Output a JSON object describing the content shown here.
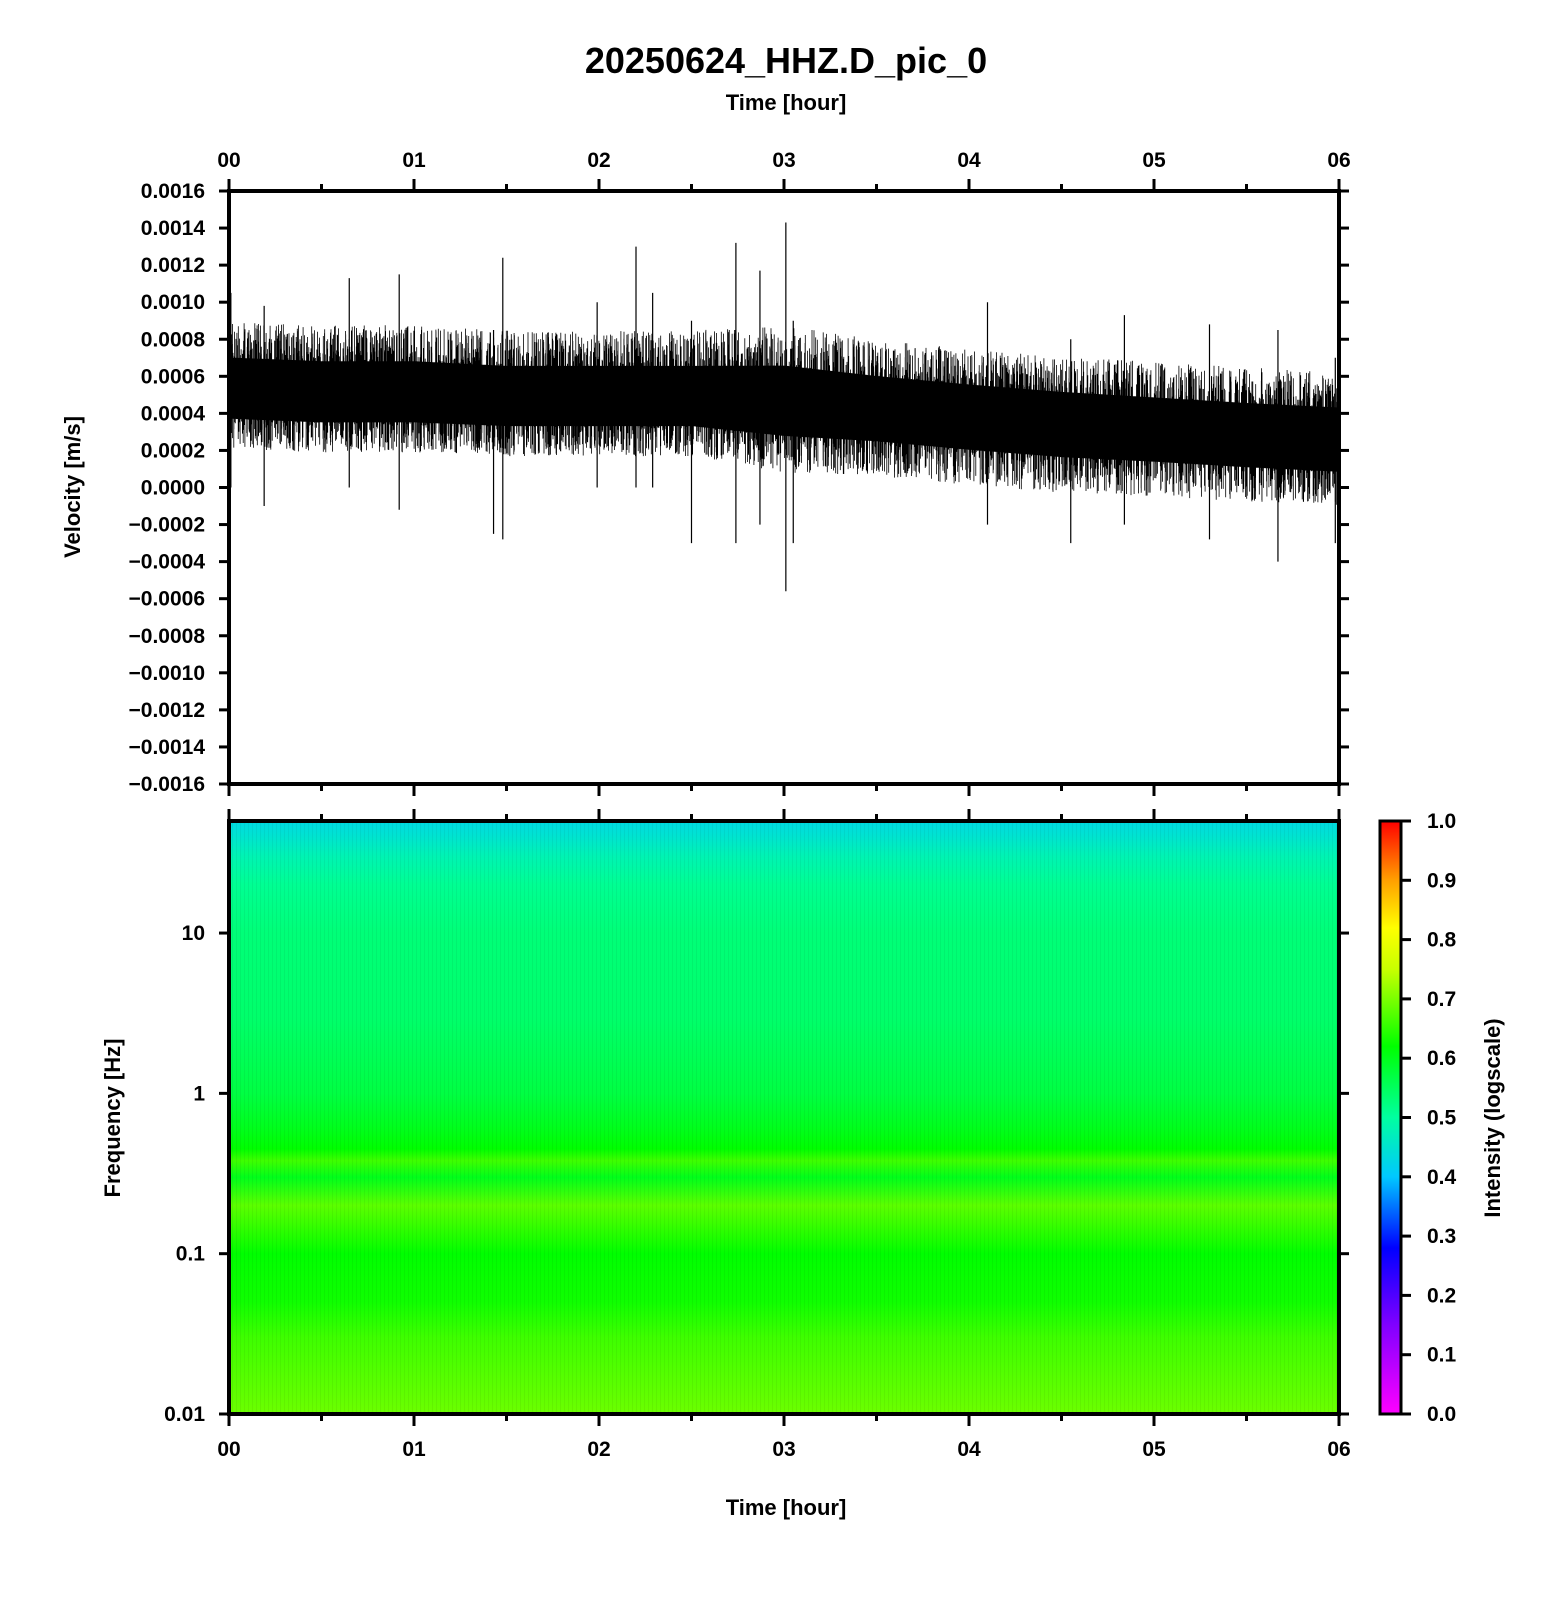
{
  "chart_data": [
    {
      "type": "line",
      "title": "20250624_HHZ.D_pic_0",
      "xlabel": "Time [hour]",
      "ylabel": "Velocity [m/s]",
      "xlim": [
        0,
        6
      ],
      "ylim": [
        -0.0016,
        0.0016
      ],
      "x_ticks": [
        "00",
        "01",
        "02",
        "03",
        "04",
        "05",
        "06"
      ],
      "y_ticks": [
        "0.0016",
        "0.0014",
        "0.0012",
        "0.0010",
        "0.0008",
        "0.0006",
        "0.0004",
        "0.0002",
        "0.0000",
        "−0.0002",
        "−0.0004",
        "−0.0006",
        "−0.0008",
        "−0.0010",
        "−0.0012",
        "−0.0014",
        "−0.0016"
      ],
      "series": [
        {
          "color": "#000000",
          "envelope": {
            "x": [
              0.0,
              0.5,
              1.0,
              1.5,
              2.0,
              2.5,
              3.0,
              3.5,
              4.0,
              4.5,
              5.0,
              5.5,
              6.0
            ],
            "mean": [
              0.00052,
              0.0005,
              0.0005,
              0.00048,
              0.00048,
              0.00048,
              0.00046,
              0.00042,
              0.00038,
              0.00034,
              0.00031,
              0.00028,
              0.00025
            ],
            "upper": [
              0.00085,
              0.00083,
              0.00083,
              0.0008,
              0.0008,
              0.0008,
              0.00082,
              0.00075,
              0.0007,
              0.00066,
              0.00063,
              0.0006,
              0.00058
            ],
            "lower": [
              0.00025,
              0.00023,
              0.00023,
              0.00021,
              0.00021,
              0.00021,
              0.00013,
              0.00011,
              6e-05,
              2e-05,
              0.0,
              -3e-05,
              -5e-05
            ]
          },
          "spikes": [
            {
              "x": 0.01,
              "min": 0.0,
              "max": 0.00105
            },
            {
              "x": 0.19,
              "min": -0.0001,
              "max": 0.00098
            },
            {
              "x": 0.65,
              "min": 0.0,
              "max": 0.00113
            },
            {
              "x": 0.92,
              "min": -0.00012,
              "max": 0.00115
            },
            {
              "x": 1.43,
              "min": -0.00025,
              "max": 0.00085
            },
            {
              "x": 1.48,
              "min": -0.00028,
              "max": 0.00124
            },
            {
              "x": 1.99,
              "min": 0.0,
              "max": 0.001
            },
            {
              "x": 2.2,
              "min": 0.0,
              "max": 0.0013
            },
            {
              "x": 2.29,
              "min": 0.0,
              "max": 0.00105
            },
            {
              "x": 2.5,
              "min": -0.0003,
              "max": 0.0009
            },
            {
              "x": 2.74,
              "min": -0.0003,
              "max": 0.00132
            },
            {
              "x": 2.87,
              "min": -0.0002,
              "max": 0.00117
            },
            {
              "x": 3.01,
              "min": -0.00056,
              "max": 0.00143
            },
            {
              "x": 3.05,
              "min": -0.0003,
              "max": 0.0009
            },
            {
              "x": 4.1,
              "min": -0.0002,
              "max": 0.001
            },
            {
              "x": 4.55,
              "min": -0.0003,
              "max": 0.0008
            },
            {
              "x": 4.84,
              "min": -0.0002,
              "max": 0.00093
            },
            {
              "x": 5.3,
              "min": -0.00028,
              "max": 0.00088
            },
            {
              "x": 5.67,
              "min": -0.0004,
              "max": 0.00085
            },
            {
              "x": 5.98,
              "min": -0.0003,
              "max": 0.0007
            }
          ]
        }
      ]
    },
    {
      "type": "heatmap",
      "xlabel": "Time [hour]",
      "ylabel": "Frequency [Hz]",
      "xlim": [
        0,
        6
      ],
      "ylim": [
        0.01,
        50
      ],
      "yscale": "log",
      "x_ticks": [
        "00",
        "01",
        "02",
        "03",
        "04",
        "05",
        "06"
      ],
      "y_ticks": [
        {
          "value": 10,
          "label": "10"
        },
        {
          "value": 1,
          "label": "1"
        },
        {
          "value": 0.1,
          "label": "0.1"
        },
        {
          "value": 0.01,
          "label": "0.01"
        }
      ],
      "intensity_profile": {
        "frequency": [
          50,
          40,
          30,
          20,
          10,
          3,
          1,
          0.6,
          0.45,
          0.38,
          0.3,
          0.2,
          0.1,
          0.05,
          0.03,
          0.01
        ],
        "intensity": [
          0.43,
          0.45,
          0.48,
          0.51,
          0.53,
          0.54,
          0.57,
          0.6,
          0.62,
          0.66,
          0.6,
          0.68,
          0.62,
          0.63,
          0.66,
          0.69
        ]
      },
      "colorbar": {
        "label": "Intensity (logscale)",
        "range": [
          0,
          1
        ],
        "ticks": [
          "1.0",
          "0.9",
          "0.8",
          "0.7",
          "0.6",
          "0.5",
          "0.4",
          "0.3",
          "0.2",
          "0.1",
          "0.0"
        ],
        "stops": [
          {
            "value": 0.0,
            "color": "#ff00ff"
          },
          {
            "value": 0.15,
            "color": "#8000ff"
          },
          {
            "value": 0.28,
            "color": "#0000ff"
          },
          {
            "value": 0.4,
            "color": "#00c8ff"
          },
          {
            "value": 0.5,
            "color": "#00ffa0"
          },
          {
            "value": 0.62,
            "color": "#00ff00"
          },
          {
            "value": 0.75,
            "color": "#c8ff00"
          },
          {
            "value": 0.82,
            "color": "#ffff00"
          },
          {
            "value": 0.9,
            "color": "#ffa000"
          },
          {
            "value": 1.0,
            "color": "#ff0000"
          }
        ]
      }
    }
  ]
}
